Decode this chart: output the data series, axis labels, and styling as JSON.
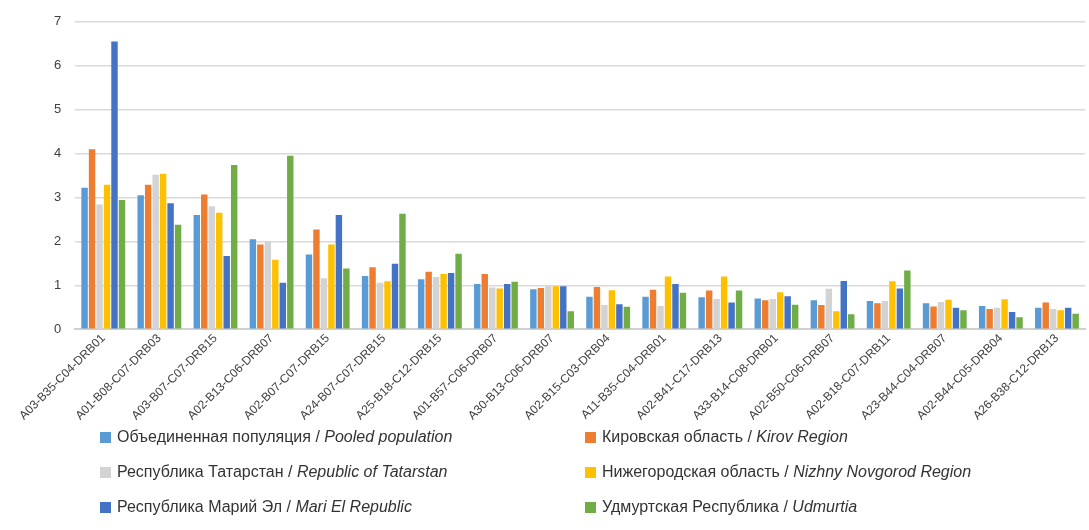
{
  "chart_data": {
    "type": "bar",
    "categories": [
      "A03-B35-C04-DRB01",
      "A01-B08-C07-DRB03",
      "A03-B07-C07-DRB15",
      "A02-B13-C06-DRB07",
      "A02-B07-C07-DRB15",
      "A24-B07-C07-DRB15",
      "A25-B18-C12-DRB15",
      "A01-B57-C06-DRB07",
      "A30-B13-C06-DRB07",
      "A02-B15-C03-DRB04",
      "A11-B35-C04-DRB01",
      "A02-B41-C17-DRB13",
      "A33-B14-C08-DRB01",
      "A02-B50-C06-DRB07",
      "A02-B18-C07-DRB11",
      "A23-B44-C04-DRB07",
      "A02-B44-C05-DRB04",
      "A26-B38-C12-DRB13"
    ],
    "series": [
      {
        "name": "Объединенная популяция / Pooled population",
        "color": "#5b9bd5",
        "values": [
          3.22,
          3.05,
          2.6,
          2.05,
          1.7,
          1.21,
          1.14,
          1.03,
          0.91,
          0.74,
          0.74,
          0.73,
          0.7,
          0.66,
          0.64,
          0.59,
          0.53,
          0.49
        ]
      },
      {
        "name": "Кировская область / Kirov Region",
        "color": "#ed7d31",
        "values": [
          4.1,
          3.29,
          3.07,
          1.93,
          2.27,
          1.41,
          1.31,
          1.26,
          0.94,
          0.96,
          0.9,
          0.88,
          0.66,
          0.55,
          0.59,
          0.52,
          0.46,
          0.61
        ]
      },
      {
        "name": "Республика Татарстан / Republic of Tatarstan",
        "color": "#d3d3d3",
        "values": [
          2.84,
          3.52,
          2.8,
          2.0,
          1.16,
          1.06,
          1.19,
          0.95,
          0.98,
          0.55,
          0.53,
          0.69,
          0.69,
          0.92,
          0.64,
          0.62,
          0.49,
          0.46
        ]
      },
      {
        "name": "Нижегородская область / Nizhny Novgorod Region",
        "color": "#ffc000",
        "values": [
          3.29,
          3.54,
          2.65,
          1.58,
          1.93,
          1.09,
          1.26,
          0.93,
          0.98,
          0.89,
          1.2,
          1.2,
          0.84,
          0.41,
          1.09,
          0.67,
          0.68,
          0.43
        ]
      },
      {
        "name": "Республика Марий Эл / Mari El Republic",
        "color": "#4472c4",
        "values": [
          6.55,
          2.87,
          1.67,
          1.06,
          2.6,
          1.49,
          1.28,
          1.03,
          0.98,
          0.57,
          1.03,
          0.61,
          0.75,
          1.1,
          0.93,
          0.49,
          0.39,
          0.49
        ]
      },
      {
        "name": "Удмуртская Республика / Udmurtia",
        "color": "#70ad47",
        "values": [
          2.94,
          2.38,
          3.74,
          3.95,
          1.38,
          2.63,
          1.72,
          1.08,
          0.41,
          0.51,
          0.83,
          0.88,
          0.56,
          0.34,
          1.34,
          0.43,
          0.27,
          0.35
        ]
      }
    ],
    "ylim": [
      0,
      7
    ],
    "yticks": [
      0,
      1,
      2,
      3,
      4,
      5,
      6,
      7
    ],
    "grid": "y",
    "legend": "bottom"
  }
}
